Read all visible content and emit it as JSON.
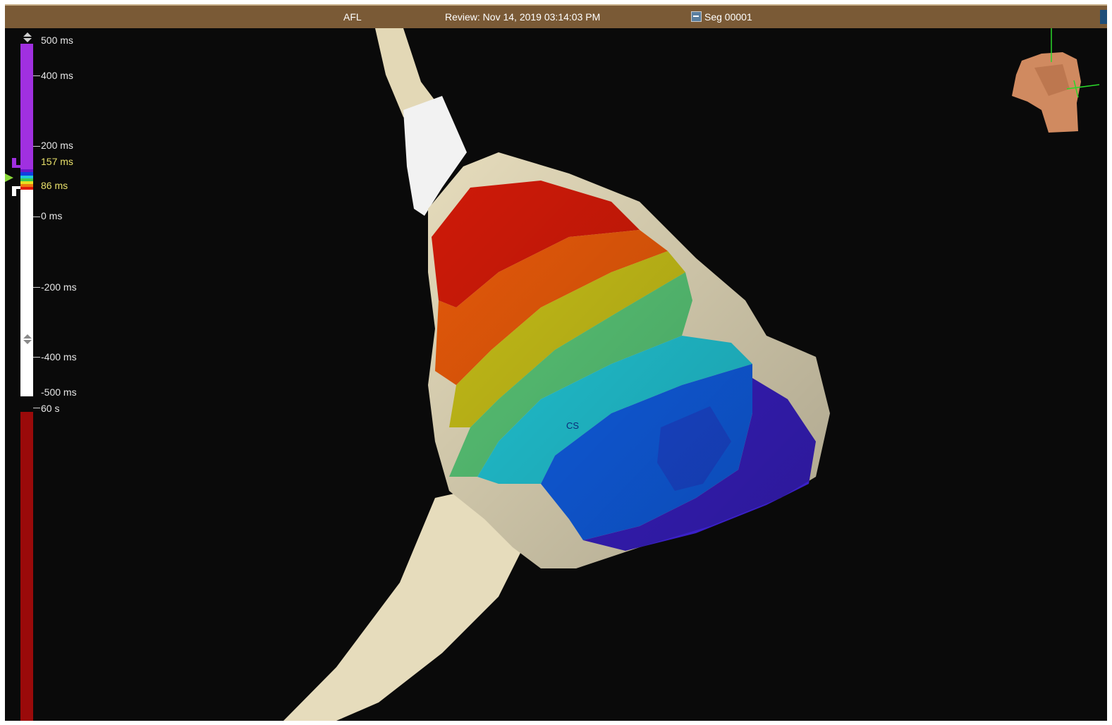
{
  "header": {
    "procedure": "AFL",
    "review": "Review: Nov 14, 2019 03:14:03 PM",
    "segment": "Seg 00001"
  },
  "scale": {
    "labels": [
      "500 ms",
      "400 ms",
      "200 ms",
      "0 ms",
      "-200 ms",
      "-400 ms",
      "-500 ms"
    ],
    "window_upper": "157 ms",
    "window_lower": "86 ms",
    "time_bar": "60 s"
  },
  "map": {
    "marker_label": "CS"
  },
  "icons": {
    "segment": "waveform-icon",
    "orientation": "torso-orientation-icon"
  },
  "colors": {
    "titlebar": "#7a5a36",
    "background": "#0a0a0a",
    "anatomy": "#e6dcbc",
    "late": "#a030e0",
    "early": "#ffffff",
    "time_bar": "#9a0a0a"
  }
}
